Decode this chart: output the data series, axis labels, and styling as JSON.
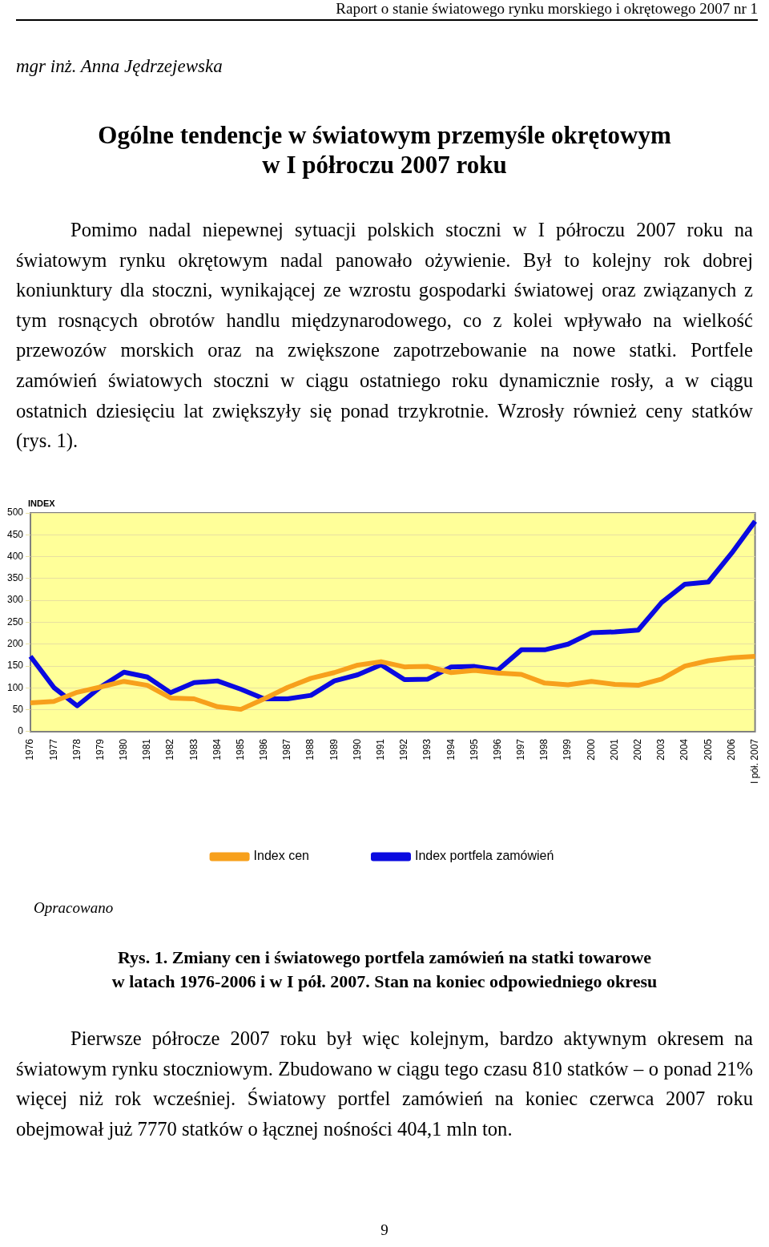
{
  "chart_data": {
    "type": "line",
    "title": "Rys. 1. Zmiany cen i światowego portfela zamówień na statki towarowe\nw latach 1976-2006 i w I pół. 2007. Stan na koniec odpowiedniego okresu",
    "ylabel": "INDEX",
    "annotations": [
      "Raport o stanie światowego rynku morskiego i okrętowego 2007 nr 1",
      "mgr inż. Anna Jędrzejewska",
      "Ogólne tendencje w światowym przemyśle okrętowym\nw I półroczu 2007 roku",
      "Pomimo nadal niepewnej sytuacji polskich stoczni w I półroczu 2007 roku na światowym rynku okrętowym nadal panowało ożywienie. Był to kolejny rok dobrej koniunktury dla stoczni, wynikającej ze wzrostu gospodarki światowej oraz związanych z tym rosnących obrotów handlu międzynarodowego, co z kolei wpływało na wielkość przewozów morskich oraz na zwiększone zapotrzebowanie na nowe statki. Portfele zamówień światowych stoczni w ciągu ostatniego roku dynamicznie rosły, a w ciągu ostatnich dziesięciu lat zwiększyły się ponad trzykrotnie. Wzrosły również ceny statków (rys. 1).",
      "Opracowano",
      "Pierwsze półrocze 2007 roku był więc kolejnym, bardzo aktywnym okresem na światowym rynku stoczniowym. Zbudowano w ciągu tego czasu 810 statków – o ponad 21% więcej niż rok wcześniej. Światowy portfel zamówień na koniec czerwca 2007 roku obejmował już 7770 statków o łącznej nośności 404,1 mln ton.",
      "9"
    ],
    "categories": [
      "1976",
      "1977",
      "1978",
      "1979",
      "1980",
      "1981",
      "1982",
      "1983",
      "1984",
      "1985",
      "1986",
      "1987",
      "1988",
      "1989",
      "1990",
      "1991",
      "1992",
      "1993",
      "1994",
      "1995",
      "1996",
      "1997",
      "1998",
      "1999",
      "2000",
      "2001",
      "2002",
      "2003",
      "2004",
      "2005",
      "2006",
      "I pół. 2007"
    ],
    "series": [
      {
        "name": "Index cen",
        "color": "#f7a01c",
        "values": [
          66,
          69,
          90,
          102,
          115,
          106,
          77,
          75,
          57,
          51,
          75,
          101,
          122,
          135,
          152,
          160,
          148,
          149,
          135,
          140,
          134,
          131,
          111,
          107,
          115,
          108,
          106,
          120,
          150,
          162,
          169,
          172
        ]
      },
      {
        "name": "Index portfela zamówień",
        "color": "#0a0ae0",
        "values": [
          172,
          101,
          59,
          102,
          136,
          125,
          89,
          112,
          116,
          97,
          75,
          75,
          83,
          116,
          130,
          153,
          119,
          120,
          148,
          149,
          141,
          187,
          187,
          200,
          226,
          228,
          232,
          295,
          337,
          342,
          408,
          481
        ]
      }
    ],
    "ylim": [
      0,
      500
    ],
    "yticks": [
      0,
      50,
      100,
      150,
      200,
      250,
      300,
      350,
      400,
      450,
      500
    ],
    "grid": "y",
    "legend": "bottom",
    "marker": "none",
    "line_style": "solid"
  }
}
